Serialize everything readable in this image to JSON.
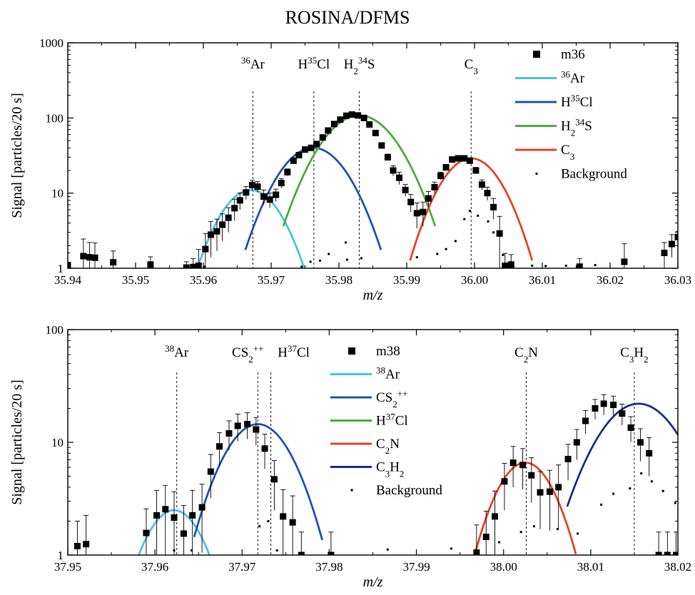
{
  "title": "ROSINA/DFMS",
  "chart_data": [
    {
      "type": "scatter",
      "xlabel": "m/z",
      "ylabel": "Signal [particles/20 s]",
      "yscale": "log",
      "xlim": [
        35.94,
        36.03
      ],
      "ylim": [
        1,
        1000
      ],
      "xticks": [
        35.94,
        35.95,
        35.96,
        35.97,
        35.98,
        35.99,
        36.0,
        36.01,
        36.02,
        36.03
      ],
      "xtick_labels": [
        "35.94",
        "35.95",
        "35.96",
        "35.97",
        "35.98",
        "35.99",
        "36.00",
        "36.01",
        "36.02",
        "36.03"
      ],
      "yticks": [
        1,
        10,
        100,
        1000
      ],
      "ytick_labels": [
        "1",
        "10",
        "100",
        "1000"
      ],
      "peaks": [
        {
          "label": "36Ar",
          "base": "Ar",
          "sup": "36",
          "pre": true,
          "x": 35.9673
        },
        {
          "label": "H35Cl",
          "base": "H",
          "sup": "35",
          "tail": "Cl",
          "x": 35.9763
        },
        {
          "label": "H234S",
          "base": "H",
          "sub": "2",
          "sup": "34",
          "tail": "S",
          "x": 35.983
        },
        {
          "label": "C3",
          "base": "C",
          "sub": "3",
          "x": 35.9995
        }
      ],
      "series": [
        {
          "name": "m36",
          "kind": "points",
          "color": "#000000",
          "x": [
            35.94,
            35.9423,
            35.9432,
            35.944,
            35.9467,
            35.9522,
            35.9575,
            35.9585,
            35.9593,
            35.9603,
            35.9611,
            35.962,
            35.9628,
            35.9637,
            35.9646,
            35.9654,
            35.9663,
            35.9672,
            35.968,
            35.9689,
            35.9698,
            35.9707,
            35.9715,
            35.9724,
            35.9733,
            35.9741,
            35.975,
            35.9759,
            35.9767,
            35.9776,
            35.9784,
            35.9793,
            35.9802,
            35.9811,
            35.9819,
            35.9828,
            35.9837,
            35.9845,
            35.9854,
            35.9863,
            35.9872,
            35.988,
            35.9889,
            35.9898,
            35.9906,
            35.9915,
            35.9924,
            35.9932,
            35.9941,
            35.995,
            35.9958,
            35.9967,
            35.9976,
            35.9985,
            35.9993,
            36.0002,
            36.0011,
            36.0019,
            36.0028,
            36.0037,
            36.0045,
            36.0054,
            36.0155,
            36.0221,
            36.028,
            36.0291,
            36.03
          ],
          "y": [
            1.1,
            1.45,
            1.4,
            1.38,
            1.2,
            1.12,
            1.02,
            1.04,
            1.08,
            1.8,
            2.8,
            3.1,
            3.8,
            4.7,
            6.3,
            8.0,
            10.2,
            12.8,
            12.2,
            9.0,
            8.2,
            9.5,
            13.6,
            19.0,
            27.0,
            32.0,
            38.0,
            40.0,
            45.0,
            55.0,
            68.0,
            83.0,
            95.0,
            107.0,
            111.0,
            108.0,
            100.0,
            82.0,
            63.0,
            43.0,
            30.0,
            20.0,
            16.0,
            11.0,
            7.6,
            5.4,
            5.6,
            8.5,
            12.0,
            17.0,
            22.0,
            28.0,
            29.0,
            29.0,
            27.0,
            20.0,
            13.0,
            10.0,
            6.5,
            2.9,
            1.08,
            1.12,
            1.05,
            1.22,
            1.6,
            2.1,
            2.6
          ],
          "err": [
            0.5,
            1.0,
            0.8,
            0.8,
            0.5,
            0.3,
            0.2,
            0.3,
            0.7,
            1.1,
            1.4,
            1.4,
            1.5,
            1.7,
            2.0,
            2.0,
            2.0,
            2.0,
            2.0,
            2.0,
            1.8,
            1.8,
            2.0,
            2.0,
            2.0,
            2.0,
            3.0,
            3.0,
            3.0,
            3.0,
            3.0,
            3.0,
            3.0,
            3.0,
            3.0,
            3.0,
            3.0,
            3.0,
            3.0,
            3.0,
            3.0,
            3.0,
            3.0,
            2.0,
            2.0,
            2.0,
            2.0,
            2.0,
            2.0,
            2.0,
            2.0,
            2.0,
            2.0,
            2.0,
            2.0,
            2.0,
            2.0,
            2.0,
            2.0,
            2.0,
            0.5,
            0.4,
            0.3,
            0.9,
            0.6,
            0.7,
            0.5
          ]
        },
        {
          "name": "36Ar",
          "sup": "36",
          "base": "Ar",
          "pre": true,
          "kind": "curve",
          "color": "#4cc3e0",
          "center": 35.967,
          "amp": 11.0,
          "sigma": 0.0036,
          "range": [
            35.9585,
            35.9762
          ]
        },
        {
          "name": "H35Cl",
          "base": "H",
          "sup": "35",
          "tail": "Cl",
          "kind": "curve",
          "color": "#1f55b0",
          "center": 35.9762,
          "amp": 40.0,
          "sigma": 0.004,
          "range": [
            35.9662,
            35.9862
          ]
        },
        {
          "name": "H234S",
          "base": "H",
          "sub": "2",
          "sup": "34",
          "tail": "S",
          "kind": "curve",
          "color": "#4caf3c",
          "center": 35.983,
          "amp": 108.0,
          "sigma": 0.0043,
          "range": [
            35.9718,
            35.9942
          ]
        },
        {
          "name": "C3",
          "base": "C",
          "sub": "3",
          "kind": "curve",
          "color": "#e8442a",
          "center": 35.9995,
          "amp": 29.0,
          "sigma": 0.0036,
          "range": [
            35.9905,
            36.0085
          ]
        },
        {
          "name": "Background",
          "kind": "dots",
          "color": "#000000",
          "x": [
            35.9602,
            35.9745,
            35.9758,
            35.9772,
            35.9785,
            35.981,
            35.9812,
            35.9833,
            35.9915,
            35.9945,
            35.9958,
            35.9972,
            35.9985,
            35.9993,
            36.0005,
            36.002,
            36.0028,
            36.0042,
            36.0052,
            36.0085,
            36.0105,
            36.0135,
            36.0178
          ],
          "y": [
            1.05,
            1.05,
            1.22,
            1.26,
            1.55,
            2.2,
            1.3,
            1.36,
            1.4,
            1.55,
            1.8,
            2.3,
            4.5,
            5.8,
            5.0,
            4.2,
            3.0,
            1.5,
            1.2,
            1.08,
            1.07,
            1.08,
            1.1
          ]
        }
      ]
    },
    {
      "type": "scatter",
      "xlabel": "m/z",
      "ylabel": "Signal [particles/20 s]",
      "yscale": "log",
      "xlim": [
        37.95,
        38.02
      ],
      "ylim": [
        1,
        100
      ],
      "xticks": [
        37.95,
        37.96,
        37.97,
        37.98,
        37.99,
        38.0,
        38.01,
        38.02
      ],
      "xtick_labels": [
        "37.95",
        "37.96",
        "37.97",
        "37.98",
        "37.99",
        "38.00",
        "38.01",
        "38.02"
      ],
      "yticks": [
        1,
        10,
        100
      ],
      "ytick_labels": [
        "1",
        "10",
        "100"
      ],
      "peaks": [
        {
          "label": "38Ar",
          "base": "Ar",
          "sup": "38",
          "pre": true,
          "x": 37.9625
        },
        {
          "label": "CS2++",
          "base": "CS",
          "sub": "2",
          "sup": "++",
          "x": 37.9718
        },
        {
          "label": "H37Cl",
          "base": "H",
          "sup": "37",
          "tail": "Cl",
          "x": 37.9733
        },
        {
          "label": "C2N",
          "base": "C",
          "sub": "2",
          "tail": "N",
          "x": 38.0026
        },
        {
          "label": "C3H2",
          "base": "C",
          "sub": "3",
          "tail": "H",
          "sub2": "2",
          "x": 38.015
        }
      ],
      "series": [
        {
          "name": "m38",
          "kind": "points",
          "color": "#000000",
          "x": [
            37.9511,
            37.9521,
            37.959,
            37.9602,
            37.9612,
            37.9622,
            37.9633,
            37.9643,
            37.9654,
            37.9664,
            37.9674,
            37.9685,
            37.9695,
            37.9706,
            37.9716,
            37.9726,
            37.9737,
            37.9747,
            37.9758,
            37.9768,
            37.9802,
            37.9969,
            37.998,
            37.999,
            38.0001,
            38.0011,
            38.0022,
            38.0032,
            38.0042,
            38.0053,
            38.0063,
            38.0074,
            38.0084,
            38.0094,
            38.0105,
            38.0115,
            38.0126,
            38.0136,
            38.0146,
            38.0157,
            38.0167,
            38.0178,
            38.0188,
            38.0198
          ],
          "y": [
            1.2,
            1.25,
            1.57,
            2.25,
            2.55,
            2.15,
            1.55,
            2.25,
            2.65,
            5.5,
            9.2,
            12.0,
            14.0,
            14.5,
            13.0,
            8.8,
            4.7,
            2.2,
            1.95,
            1.0,
            1.0,
            1.05,
            1.45,
            2.2,
            4.5,
            6.6,
            6.3,
            5.1,
            3.6,
            3.65,
            4.0,
            7.1,
            10.0,
            15.5,
            20.0,
            22.0,
            21.5,
            18.0,
            13.5,
            10.0,
            8.0,
            1.0,
            1.0,
            1.0
          ],
          "err": [
            0.8,
            1.0,
            1.0,
            1.5,
            1.6,
            1.5,
            1.2,
            1.5,
            1.6,
            2.3,
            3.0,
            3.5,
            3.8,
            3.8,
            3.6,
            3.0,
            2.2,
            1.6,
            1.4,
            0.6,
            0.6,
            0.8,
            1.0,
            1.5,
            2.0,
            2.6,
            2.5,
            2.2,
            1.9,
            2.0,
            2.3,
            2.5,
            3.0,
            3.6,
            4.0,
            4.5,
            4.2,
            3.8,
            3.4,
            3.2,
            3.0,
            0.6,
            0.6,
            0.6
          ]
        },
        {
          "name": "38Ar",
          "sup": "38",
          "base": "Ar",
          "pre": true,
          "kind": "curve",
          "color": "#4cc3e0",
          "center": 37.9622,
          "amp": 2.5,
          "sigma": 0.003,
          "range": [
            37.9578,
            37.9665
          ]
        },
        {
          "name": "CS2++",
          "base": "CS",
          "sub": "2",
          "sup": "++",
          "kind": "curve",
          "color": "#1f55b0",
          "center": 37.9718,
          "amp": 14.5,
          "sigma": 0.0034,
          "range": [
            37.9645,
            37.9792
          ]
        },
        {
          "name": "H37Cl",
          "base": "H",
          "sup": "37",
          "tail": "Cl",
          "kind": "curve",
          "color": "#4caf3c",
          "center": 37.9733,
          "amp": 1.0,
          "sigma": 0.003,
          "range": [
            37.9733,
            37.9733
          ]
        },
        {
          "name": "C2N",
          "base": "C",
          "sub": "2",
          "tail": "N",
          "kind": "curve",
          "color": "#e8442a",
          "center": 38.0025,
          "amp": 6.6,
          "sigma": 0.003,
          "range": [
            37.9967,
            38.0083
          ]
        },
        {
          "name": "C3H2",
          "base": "C",
          "sub": "3",
          "tail": "H",
          "sub2": "2",
          "kind": "curve",
          "color": "#1b2f8a",
          "center": 38.0155,
          "amp": 22.0,
          "sigma": 0.004,
          "range": [
            38.0073,
            38.02
          ]
        },
        {
          "name": "Background",
          "kind": "dots",
          "color": "#000000",
          "x": [
            37.9622,
            37.9642,
            37.972,
            37.973,
            37.974,
            37.9867,
            37.994,
            37.9995,
            38.002,
            38.0035,
            38.0062,
            38.0085,
            38.0112,
            38.0126,
            38.0145,
            38.0158,
            38.017,
            38.0183,
            38.0197
          ],
          "y": [
            1.1,
            1.1,
            1.8,
            2.0,
            1.1,
            1.12,
            1.14,
            1.3,
            1.6,
            1.8,
            1.7,
            1.55,
            2.8,
            3.5,
            3.9,
            5.3,
            4.5,
            3.7,
            2.9
          ]
        }
      ]
    }
  ]
}
